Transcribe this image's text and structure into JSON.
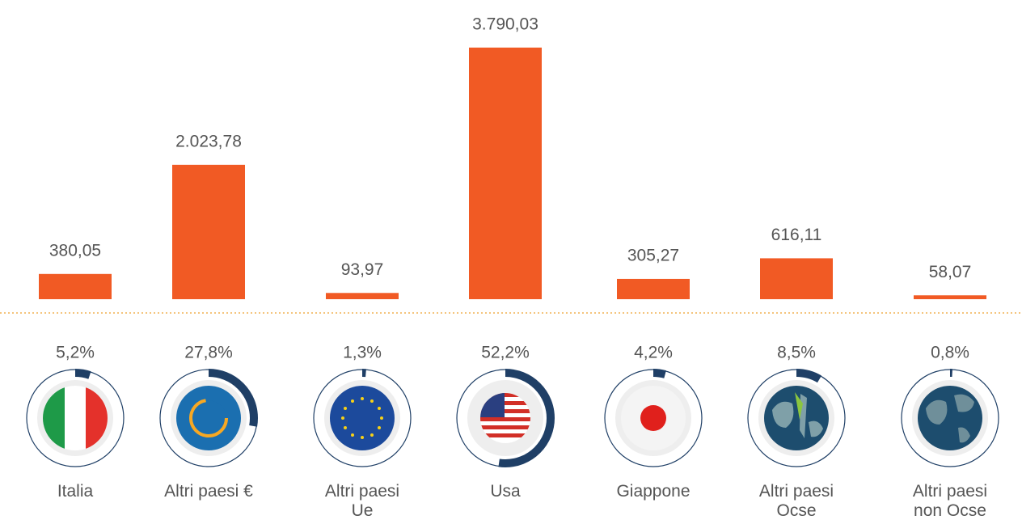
{
  "chart_data": {
    "type": "bar",
    "categories": [
      "Italia",
      "Altri paesi €",
      "Altri paesi Ue",
      "Usa",
      "Giappone",
      "Altri paesi Ocse",
      "Altri paesi non Ocse"
    ],
    "values": [
      380.05,
      2023.78,
      93.97,
      3790.03,
      305.27,
      616.11,
      58.07
    ],
    "value_labels": [
      "380,05",
      "2.023,78",
      "93,97",
      "3.790,03",
      "305,27",
      "616,11",
      "58,07"
    ],
    "shares": [
      5.2,
      27.8,
      1.3,
      52.2,
      4.2,
      8.5,
      0.8
    ],
    "share_labels": [
      "5,2%",
      "27,8%",
      "1,3%",
      "52,2%",
      "4,2%",
      "8,5%",
      "0,8%"
    ],
    "color": "#f15a24",
    "ring_color": "#1f3f66",
    "ylim": [
      0,
      3800
    ]
  }
}
